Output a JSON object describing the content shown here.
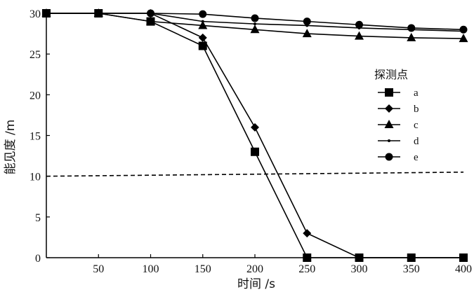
{
  "chart_data": {
    "type": "line",
    "xlabel": "时间 /s",
    "ylabel": "能见度 /m",
    "xlim": [
      0,
      400
    ],
    "ylim": [
      0,
      30
    ],
    "x_ticks": [
      50,
      100,
      150,
      200,
      250,
      300,
      350,
      400
    ],
    "y_ticks": [
      0,
      5,
      10,
      15,
      20,
      25,
      30
    ],
    "legend_title": "探测点",
    "legend_position": "right",
    "x": [
      0,
      50,
      100,
      150,
      200,
      250,
      300,
      350,
      400
    ],
    "series": [
      {
        "name": "a",
        "marker": "square",
        "values": [
          30,
          30,
          29,
          26,
          13,
          0,
          0,
          0,
          0
        ]
      },
      {
        "name": "b",
        "marker": "diamond",
        "values": [
          30,
          30,
          30,
          27,
          16,
          3,
          0,
          0,
          0
        ]
      },
      {
        "name": "c",
        "marker": "triangle",
        "values": [
          30,
          30,
          29,
          28.5,
          28,
          27.5,
          27.2,
          27,
          26.9
        ]
      },
      {
        "name": "d",
        "marker": "dot",
        "values": [
          30,
          30,
          30,
          29,
          28.7,
          28.5,
          28.2,
          28,
          27.8
        ]
      },
      {
        "name": "e",
        "marker": "circle",
        "values": [
          30,
          30,
          30,
          29.9,
          29.4,
          29,
          28.6,
          28.2,
          28
        ]
      }
    ],
    "reference_line": {
      "style": "dashed",
      "values": [
        10,
        10.5
      ]
    },
    "colors": {
      "line": "#000000",
      "axis": "#000000",
      "background": "#ffffff"
    }
  }
}
